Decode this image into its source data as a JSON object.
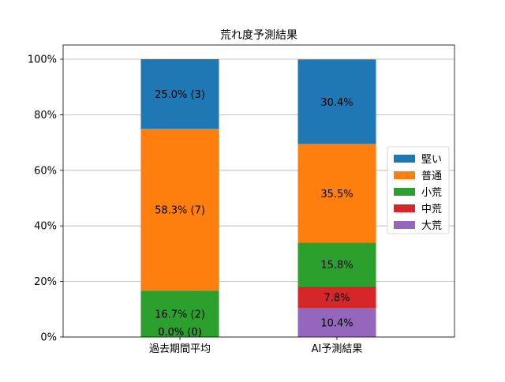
{
  "chart_data": {
    "type": "bar",
    "stacked": true,
    "title": "荒れ度予測結果",
    "xlabel": "",
    "ylabel": "",
    "categories": [
      "過去期間平均",
      "AI予測結果"
    ],
    "ylim": [
      0,
      100
    ],
    "yticks": [
      0,
      20,
      40,
      60,
      80,
      100
    ],
    "ytick_labels": [
      "0%",
      "20%",
      "40%",
      "60%",
      "80%",
      "100%"
    ],
    "grid": "horizontal",
    "legend_position": "center-right",
    "series": [
      {
        "name": "大荒",
        "color": "#9467bd",
        "values": [
          0.0,
          10.4
        ],
        "labels": [
          "",
          "10.4%"
        ]
      },
      {
        "name": "中荒",
        "color": "#d62728",
        "values": [
          0.0,
          7.8
        ],
        "labels": [
          "",
          "7.8%"
        ]
      },
      {
        "name": "小荒",
        "color": "#2ca02c",
        "values": [
          16.7,
          15.8
        ],
        "labels": [
          "16.7% (2)",
          "15.8%"
        ]
      },
      {
        "name": "普通",
        "color": "#ff7f0e",
        "values": [
          58.3,
          35.5
        ],
        "labels": [
          "58.3% (7)",
          "35.5%"
        ]
      },
      {
        "name": "堅い",
        "color": "#1f77b4",
        "values": [
          25.0,
          30.4
        ],
        "labels": [
          "25.0% (3)",
          "30.4%"
        ]
      }
    ],
    "overlay_labels": [
      {
        "category": "過去期間平均",
        "text": "0.0% (0)",
        "at_value": 0.0
      },
      {
        "category": "過去期間平均",
        "text": "0.0% (0)",
        "at_value": 0.0
      }
    ],
    "legend_order": [
      "堅い",
      "普通",
      "小荒",
      "中荒",
      "大荒"
    ]
  }
}
